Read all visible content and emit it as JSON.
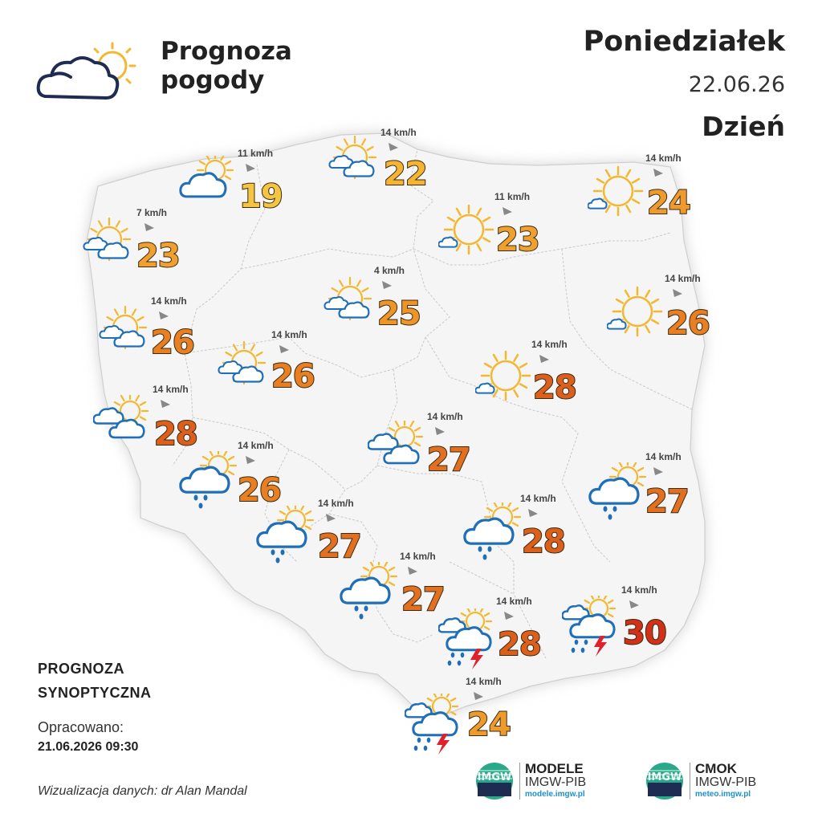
{
  "header": {
    "title_line1": "Prognoza",
    "title_line2": "pogody",
    "day": "Poniedziałek",
    "date": "22.06.26",
    "period": "Dzień",
    "title_icon": "sun-behind-cloud-icon"
  },
  "footer": {
    "forecast_line1": "PROGNOZA",
    "forecast_line2": "SYNOPTYCZNA",
    "issued_label": "Opracowano:",
    "issued_value": "21.06.2026 09:30",
    "credit": "Wizualizacja danych: dr Alan Mandal"
  },
  "logos": [
    {
      "name": "MODELE",
      "org": "IMGW-PIB",
      "url": "modele.imgw.pl",
      "mark": "IMGW"
    },
    {
      "name": "CMOK",
      "org": "IMGW-PIB",
      "url": "meteo.imgw.pl",
      "mark": "IMGW"
    }
  ],
  "colors": {
    "temp_19": "#f5c542",
    "temp_22": "#f5b533",
    "temp_23": "#f0a030",
    "temp_24": "#ee9a2c",
    "temp_25": "#ee9528",
    "temp_26": "#e87f22",
    "temp_27": "#e27020",
    "temp_28": "#dd5f1c",
    "temp_30": "#d23018",
    "sun": "#f3b731",
    "cloud": "#1f6fb8",
    "lightning": "#e0202a",
    "map_fill": "#f5f5f5"
  },
  "stations": [
    {
      "wind": "11 km/h",
      "temp": "19",
      "icon": "partly-cloudy"
    },
    {
      "wind": "14 km/h",
      "temp": "22",
      "icon": "sunny-with-clouds"
    },
    {
      "wind": "14 km/h",
      "temp": "24",
      "icon": "mostly-sunny"
    },
    {
      "wind": "7 km/h",
      "temp": "23",
      "icon": "sunny-with-clouds"
    },
    {
      "wind": "11 km/h",
      "temp": "23",
      "icon": "mostly-sunny"
    },
    {
      "wind": "4 km/h",
      "temp": "25",
      "icon": "sunny-with-clouds"
    },
    {
      "wind": "14 km/h",
      "temp": "26",
      "icon": "mostly-sunny"
    },
    {
      "wind": "14 km/h",
      "temp": "26",
      "icon": "sunny-with-clouds"
    },
    {
      "wind": "14 km/h",
      "temp": "26",
      "icon": "sunny-with-clouds"
    },
    {
      "wind": "14 km/h",
      "temp": "28",
      "icon": "mostly-sunny"
    },
    {
      "wind": "14 km/h",
      "temp": "28",
      "icon": "cloudy-with-sun"
    },
    {
      "wind": "14 km/h",
      "temp": "27",
      "icon": "cloudy-with-sun"
    },
    {
      "wind": "14 km/h",
      "temp": "26",
      "icon": "rain-with-sun"
    },
    {
      "wind": "14 km/h",
      "temp": "27",
      "icon": "rain-with-sun"
    },
    {
      "wind": "14 km/h",
      "temp": "27",
      "icon": "rain-with-sun"
    },
    {
      "wind": "14 km/h",
      "temp": "28",
      "icon": "rain-with-sun"
    },
    {
      "wind": "14 km/h",
      "temp": "27",
      "icon": "rain-with-sun"
    },
    {
      "wind": "14 km/h",
      "temp": "28",
      "icon": "thunderstorm"
    },
    {
      "wind": "14 km/h",
      "temp": "30",
      "icon": "thunderstorm"
    },
    {
      "wind": "14 km/h",
      "temp": "24",
      "icon": "thunderstorm"
    }
  ]
}
